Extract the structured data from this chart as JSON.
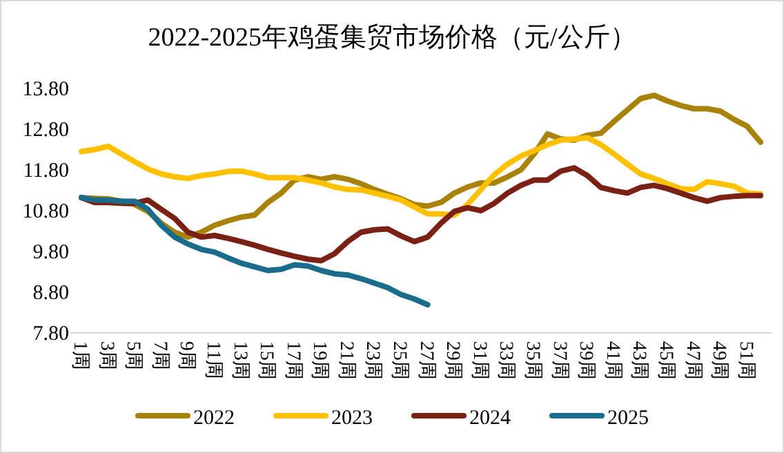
{
  "chart_data": {
    "type": "line",
    "title": "2022-2025年鸡蛋集贸市场价格（元/公斤）",
    "categories": [
      "1周",
      null,
      "3周",
      null,
      "5周",
      null,
      "7周",
      null,
      "9周",
      null,
      "11周",
      null,
      "13周",
      null,
      "15周",
      null,
      "17周",
      null,
      "19周",
      null,
      "21周",
      null,
      "23周",
      null,
      "25周",
      null,
      "27周",
      null,
      "29周",
      null,
      "31周",
      null,
      "33周",
      null,
      "35周",
      null,
      "37周",
      null,
      "39周",
      null,
      "41周",
      null,
      "43周",
      null,
      "45周",
      null,
      "47周",
      null,
      "49周",
      null,
      "51周",
      null
    ],
    "series": [
      {
        "name": "2022",
        "color": "#a8820a",
        "values": [
          11.12,
          11.1,
          11.09,
          11.03,
          10.95,
          10.78,
          10.49,
          10.27,
          10.15,
          10.27,
          10.44,
          10.55,
          10.64,
          10.69,
          11.0,
          11.23,
          11.55,
          11.63,
          11.57,
          11.63,
          11.57,
          11.46,
          11.32,
          11.2,
          11.09,
          10.95,
          10.91,
          11.0,
          11.23,
          11.38,
          11.48,
          11.48,
          11.63,
          11.8,
          12.19,
          12.68,
          12.56,
          12.53,
          12.65,
          12.7,
          12.99,
          13.27,
          13.55,
          13.63,
          13.49,
          13.38,
          13.3,
          13.3,
          13.24,
          13.04,
          12.87,
          12.48
        ]
      },
      {
        "name": "2023",
        "color": "#ffc000",
        "values": [
          12.25,
          12.3,
          12.38,
          12.19,
          12.0,
          11.82,
          11.7,
          11.63,
          11.59,
          11.66,
          11.7,
          11.76,
          11.77,
          11.7,
          11.61,
          11.61,
          11.61,
          11.55,
          11.48,
          11.38,
          11.32,
          11.31,
          11.23,
          11.15,
          11.06,
          10.89,
          10.72,
          10.72,
          10.69,
          10.95,
          11.32,
          11.68,
          11.94,
          12.14,
          12.27,
          12.42,
          12.53,
          12.56,
          12.59,
          12.42,
          12.19,
          11.94,
          11.7,
          11.59,
          11.46,
          11.34,
          11.32,
          11.51,
          11.46,
          11.4,
          11.23,
          11.21
        ]
      },
      {
        "name": "2024",
        "color": "#7b2014",
        "values": [
          11.12,
          11.0,
          11.0,
          10.98,
          10.98,
          11.06,
          10.83,
          10.61,
          10.27,
          10.15,
          10.19,
          10.12,
          10.04,
          9.95,
          9.85,
          9.76,
          9.68,
          9.61,
          9.57,
          9.74,
          10.04,
          10.27,
          10.33,
          10.35,
          10.18,
          10.04,
          10.15,
          10.49,
          10.78,
          10.87,
          10.8,
          10.98,
          11.23,
          11.42,
          11.55,
          11.55,
          11.77,
          11.85,
          11.66,
          11.37,
          11.29,
          11.23,
          11.37,
          11.42,
          11.34,
          11.23,
          11.12,
          11.03,
          11.12,
          11.15,
          11.17,
          11.17
        ]
      },
      {
        "name": "2025",
        "color": "#1a6c8c",
        "values": [
          11.12,
          11.06,
          11.06,
          11.03,
          11.03,
          10.83,
          10.44,
          10.15,
          9.98,
          9.85,
          9.78,
          9.64,
          9.51,
          9.42,
          9.33,
          9.36,
          9.47,
          9.44,
          9.33,
          9.25,
          9.22,
          9.13,
          9.02,
          8.91,
          8.74,
          8.63,
          8.49,
          null,
          null,
          null,
          null,
          null,
          null,
          null,
          null,
          null,
          null,
          null,
          null,
          null,
          null,
          null,
          null,
          null,
          null,
          null,
          null,
          null,
          null,
          null,
          null,
          null
        ]
      }
    ],
    "ylim": [
      7.8,
      13.8
    ],
    "yticks": [
      {
        "value": 7.8,
        "label": "7.80"
      },
      {
        "value": 8.8,
        "label": "8.80"
      },
      {
        "value": 9.8,
        "label": "9.80"
      },
      {
        "value": 10.8,
        "label": "10.80"
      },
      {
        "value": 11.8,
        "label": "11.80"
      },
      {
        "value": 12.8,
        "label": "12.80"
      },
      {
        "value": 13.8,
        "label": "13.80"
      }
    ],
    "grid": false,
    "legend": "bottom"
  }
}
